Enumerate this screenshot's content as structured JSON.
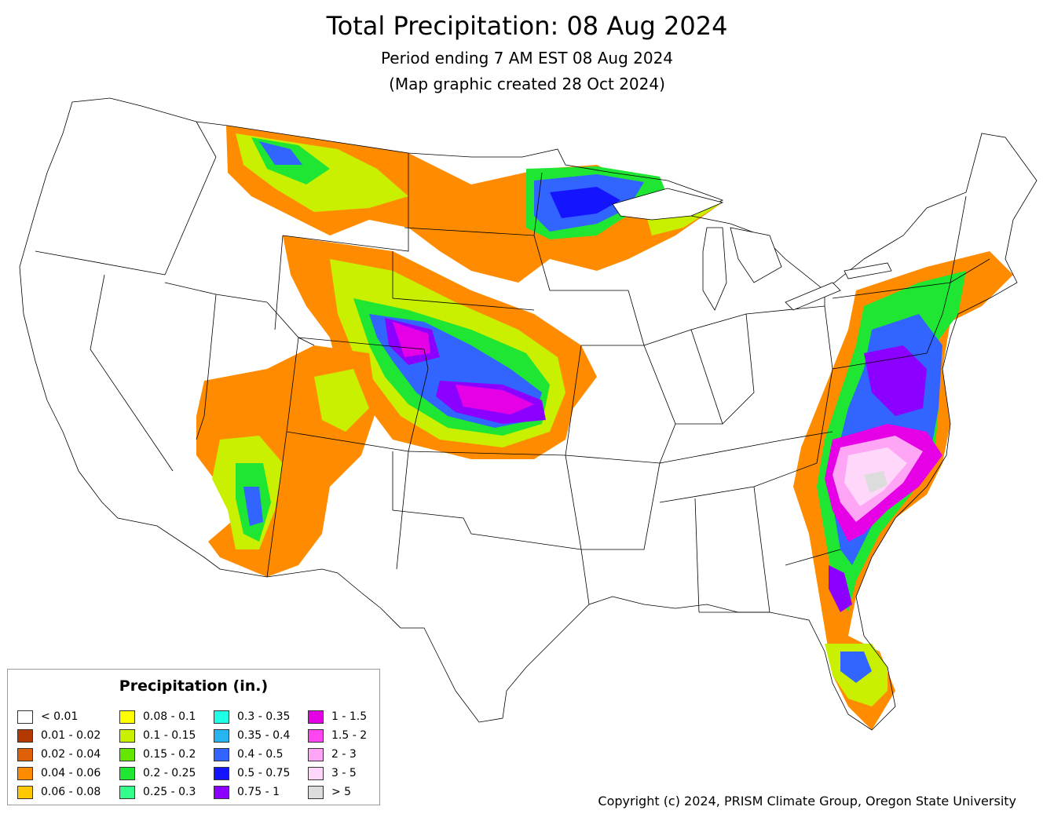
{
  "title": "Total Precipitation: 08 Aug 2024",
  "subtitle_line1": "Period ending 7 AM EST 08 Aug 2024",
  "subtitle_line2": "(Map graphic created 28 Oct 2024)",
  "legend": {
    "title": "Precipitation (in.)",
    "items": [
      {
        "label": "< 0.01",
        "color": "#ffffff"
      },
      {
        "label": "0.01 - 0.02",
        "color": "#b23a00"
      },
      {
        "label": "0.02 - 0.04",
        "color": "#e0600a"
      },
      {
        "label": "0.04 - 0.06",
        "color": "#ff8c00"
      },
      {
        "label": "0.06 - 0.08",
        "color": "#ffc800"
      },
      {
        "label": "0.08 - 0.1",
        "color": "#ffff00"
      },
      {
        "label": "0.1 - 0.15",
        "color": "#c8f000"
      },
      {
        "label": "0.15 - 0.2",
        "color": "#64e600"
      },
      {
        "label": "0.2 - 0.25",
        "color": "#1ee632"
      },
      {
        "label": "0.25 - 0.3",
        "color": "#32ff8c"
      },
      {
        "label": "0.3 - 0.35",
        "color": "#1effe6"
      },
      {
        "label": "0.35 - 0.4",
        "color": "#28b4f0"
      },
      {
        "label": "0.4 - 0.5",
        "color": "#3264ff"
      },
      {
        "label": "0.5 - 0.75",
        "color": "#1414ff"
      },
      {
        "label": "0.75 - 1",
        "color": "#8c00ff"
      },
      {
        "label": "1 - 1.5",
        "color": "#e600e6"
      },
      {
        "label": "1.5 - 2",
        "color": "#ff46f0"
      },
      {
        "label": "2 - 3",
        "color": "#ffa5f5"
      },
      {
        "label": "3 - 5",
        "color": "#ffd7fa"
      },
      {
        "label": "> 5",
        "color": "#dcdcdc"
      }
    ]
  },
  "copyright": "Copyright (c) 2024, PRISM Climate Group, Oregon State University"
}
